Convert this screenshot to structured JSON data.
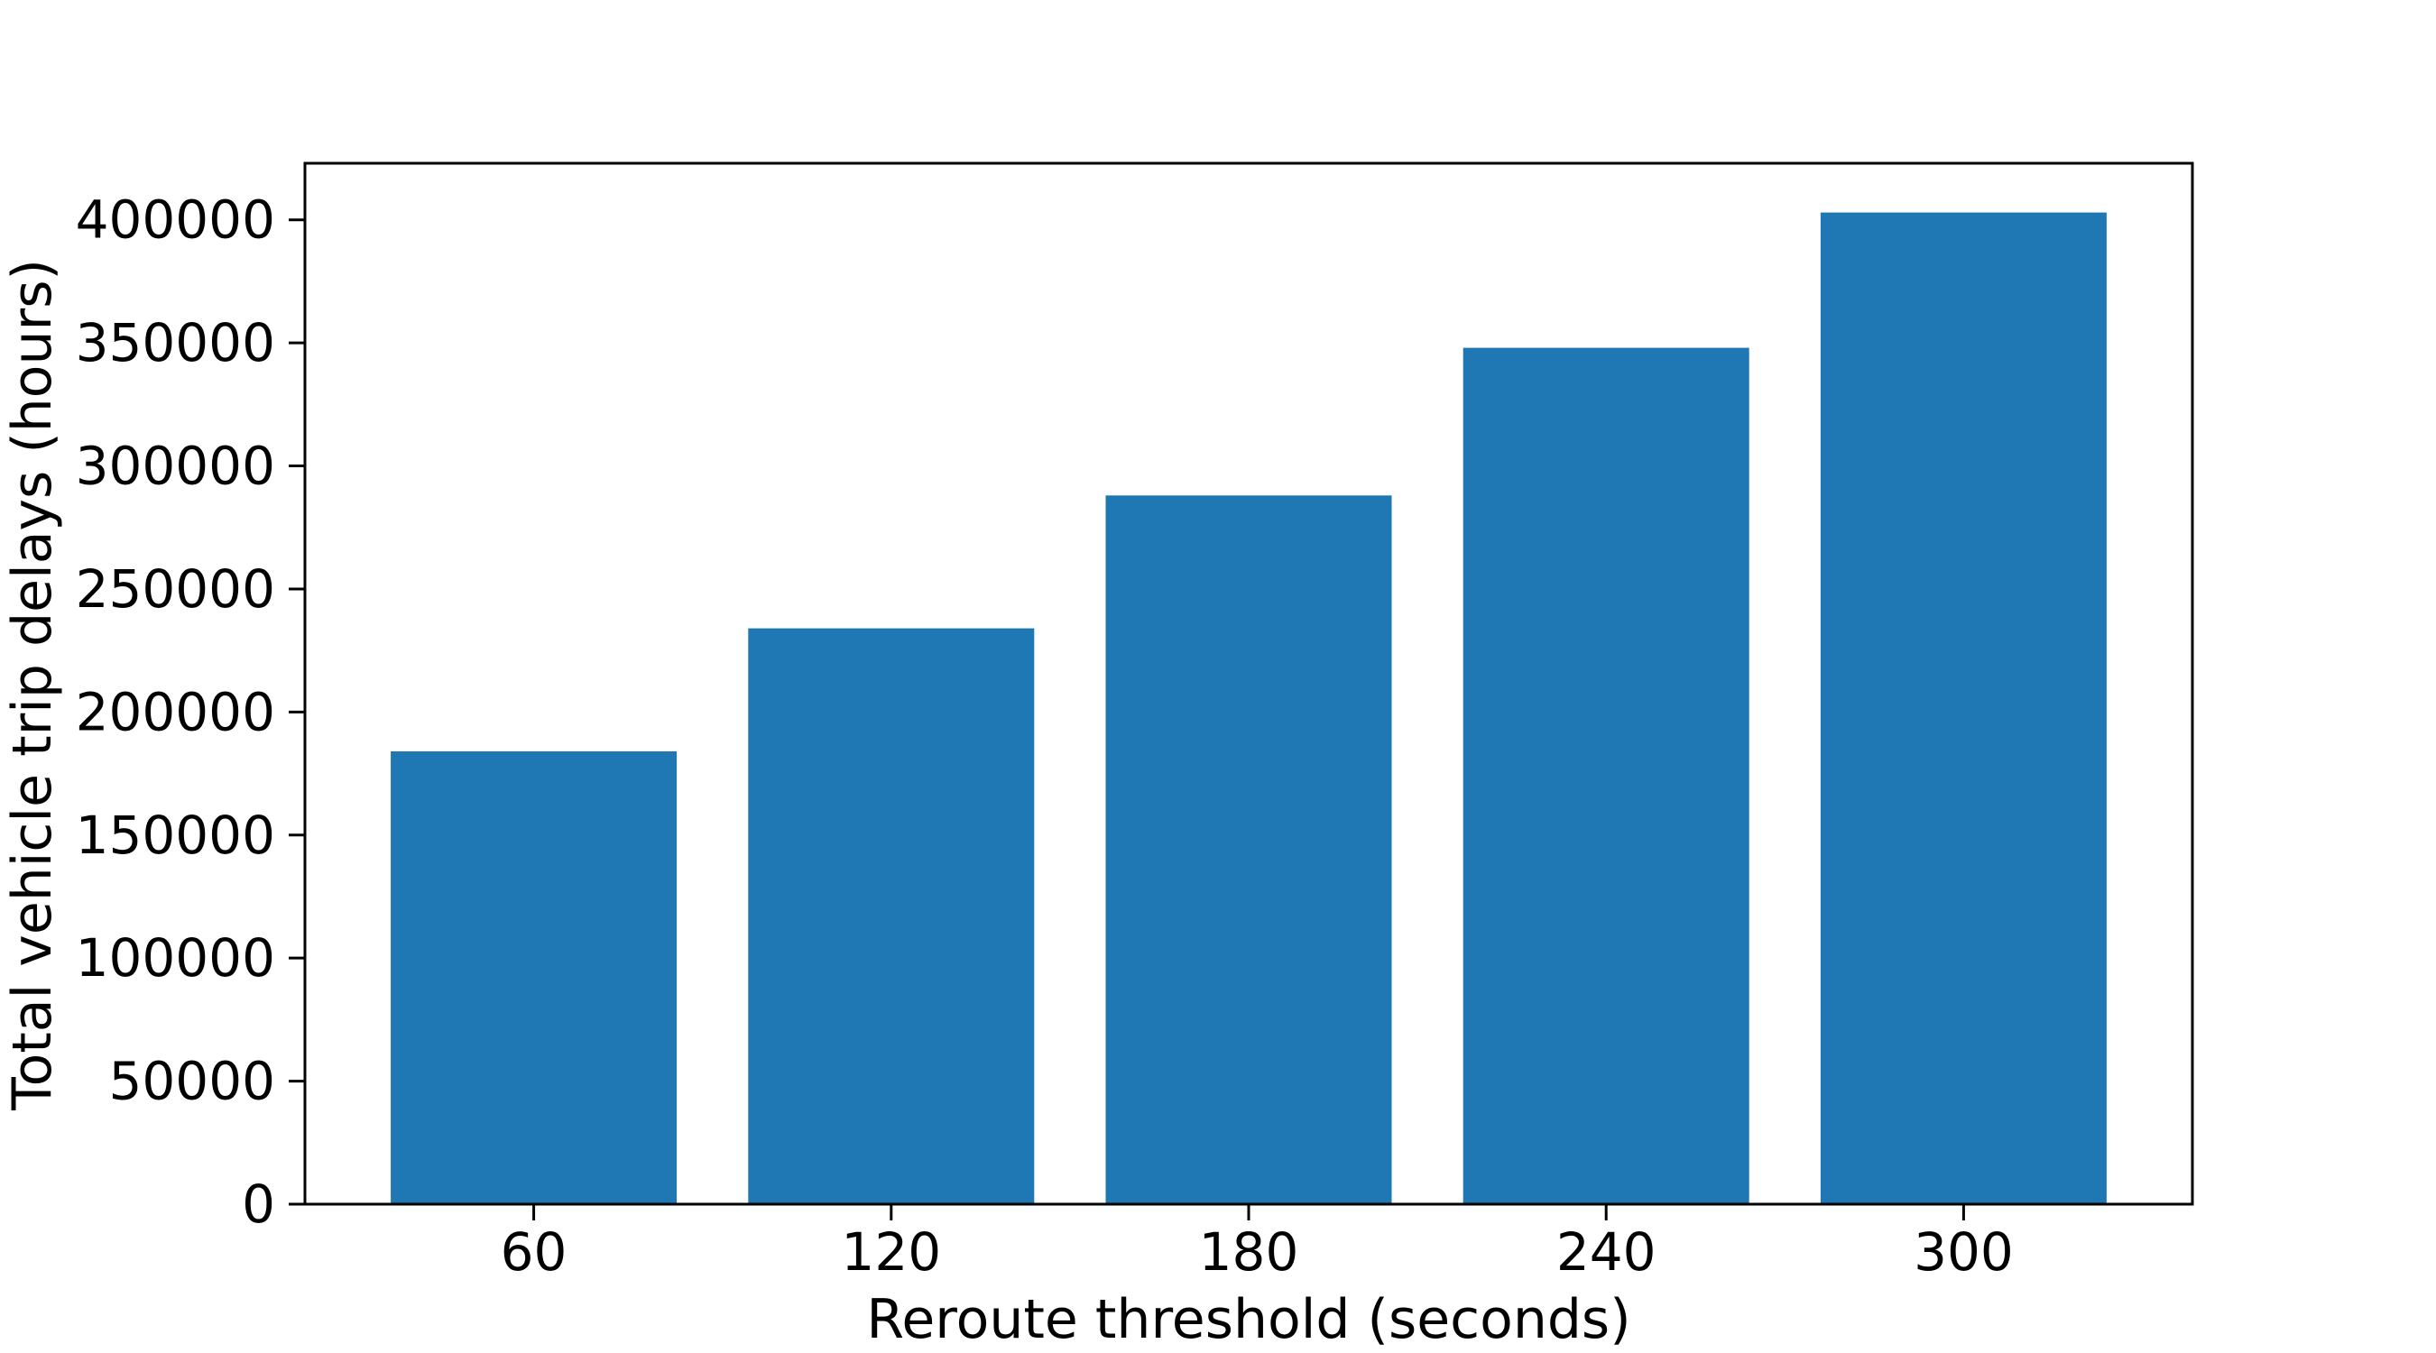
{
  "figure": {
    "background": "#ffffff"
  },
  "chart_data": {
    "type": "bar",
    "categories": [
      "60",
      "120",
      "180",
      "240",
      "300"
    ],
    "values": [
      184000,
      234000,
      288000,
      348000,
      403000
    ],
    "title": "",
    "xlabel": "Reroute threshold (seconds)",
    "ylabel": "Total vehicle trip delays (hours)",
    "yticks": [
      0,
      50000,
      100000,
      150000,
      200000,
      250000,
      300000,
      350000,
      400000
    ],
    "ylim": [
      0,
      423000
    ],
    "bar_width_fraction": 0.8,
    "bar_color": "#1f77b4",
    "axis_color": "#000000",
    "grid": false,
    "legend_position": "none"
  }
}
